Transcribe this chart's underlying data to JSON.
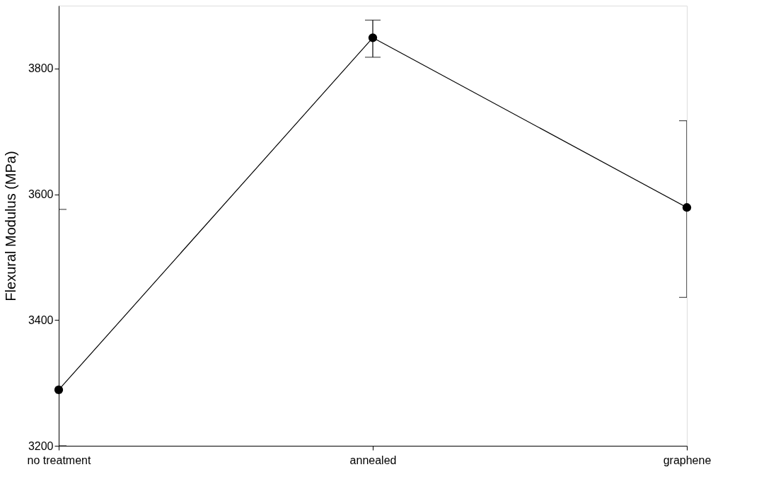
{
  "chart_data": {
    "type": "line",
    "ylabel": "Flexural Modulus (MPa)",
    "categories": [
      "no treatment",
      "annealed",
      "graphene"
    ],
    "series": [
      {
        "color": "#000000",
        "values": [
          3289,
          3849,
          3579
        ],
        "errors": [
          [
            3200,
            3576
          ],
          [
            3818,
            3877
          ],
          [
            3436,
            3717
          ]
        ]
      }
    ],
    "ylim": [
      3200,
      3900
    ],
    "yticks": [
      3200,
      3400,
      3600,
      3800
    ],
    "marker": "circle",
    "line_style": "solid",
    "grid": false
  }
}
